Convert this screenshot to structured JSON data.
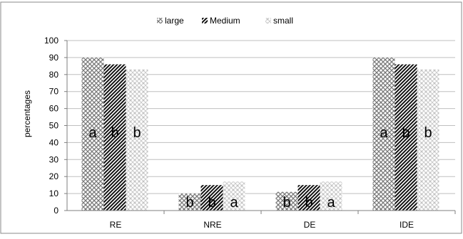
{
  "chart_data": {
    "type": "bar",
    "title": "",
    "xlabel": "",
    "ylabel": "percentages",
    "ylim": [
      0,
      100
    ],
    "yticks": [
      0,
      10,
      20,
      30,
      40,
      50,
      60,
      70,
      80,
      90,
      100
    ],
    "grid": true,
    "legend_position": "top-center",
    "categories": [
      "RE",
      "NRE",
      "DE",
      "IDE"
    ],
    "series": [
      {
        "name": "large",
        "pattern": "crosshatch",
        "values": [
          90,
          10,
          11,
          90
        ]
      },
      {
        "name": "Medium",
        "pattern": "diagonal",
        "values": [
          86,
          15,
          15,
          86
        ]
      },
      {
        "name": "small",
        "pattern": "dots",
        "values": [
          83,
          17,
          17,
          83
        ]
      }
    ],
    "annotations": [
      [
        "a",
        "b",
        "b"
      ],
      [
        "b",
        "b",
        "a"
      ],
      [
        "b",
        "b",
        "a"
      ],
      [
        "a",
        "b",
        "b"
      ]
    ],
    "colors": {
      "grid": "#bfbfbf",
      "axis": "#7f7f7f",
      "text": "#000000",
      "border": "#888888"
    }
  }
}
